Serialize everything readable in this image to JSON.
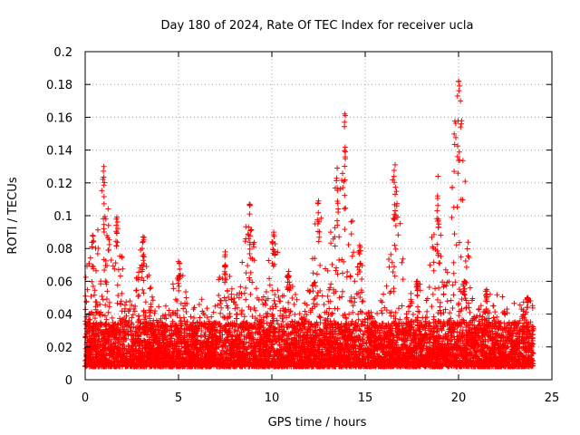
{
  "chart_data": {
    "type": "scatter",
    "title": "Day 180 of 2024, Rate Of TEC Index for receiver ucla",
    "xlabel": "GPS time / hours",
    "ylabel": "ROTI / TECUs",
    "xlim": [
      0,
      25
    ],
    "ylim": [
      0,
      0.2
    ],
    "x_ticks": [
      0,
      5,
      10,
      15,
      20,
      25
    ],
    "x_tick_labels": [
      "0",
      "5",
      "10",
      "15",
      "20",
      "25"
    ],
    "y_ticks": [
      0,
      0.02,
      0.04,
      0.06,
      0.08,
      0.1,
      0.12,
      0.14,
      0.16,
      0.18,
      0.2
    ],
    "y_tick_labels": [
      "0",
      "0.02",
      "0.04",
      "0.06",
      "0.08",
      "0.1",
      "0.12",
      "0.14",
      "0.16",
      "0.18",
      "0.2"
    ],
    "grid": true,
    "marker": "plus",
    "marker_color": "#ff0000",
    "series": [
      {
        "name": "ROTI",
        "x_range": [
          0,
          24
        ],
        "typical_min": 0.008,
        "typical_max": 0.035,
        "peaks": [
          {
            "x": 1.0,
            "y": 0.13
          },
          {
            "x": 0.4,
            "y": 0.088
          },
          {
            "x": 1.7,
            "y": 0.099
          },
          {
            "x": 3.1,
            "y": 0.087
          },
          {
            "x": 5.0,
            "y": 0.072
          },
          {
            "x": 7.5,
            "y": 0.078
          },
          {
            "x": 8.8,
            "y": 0.107
          },
          {
            "x": 10.1,
            "y": 0.09
          },
          {
            "x": 10.9,
            "y": 0.066
          },
          {
            "x": 12.5,
            "y": 0.109
          },
          {
            "x": 13.5,
            "y": 0.129
          },
          {
            "x": 13.9,
            "y": 0.162
          },
          {
            "x": 14.7,
            "y": 0.082
          },
          {
            "x": 16.6,
            "y": 0.131
          },
          {
            "x": 17.8,
            "y": 0.06
          },
          {
            "x": 18.9,
            "y": 0.124
          },
          {
            "x": 20.0,
            "y": 0.182
          },
          {
            "x": 20.3,
            "y": 0.06
          },
          {
            "x": 21.5,
            "y": 0.055
          },
          {
            "x": 23.7,
            "y": 0.05
          }
        ]
      }
    ]
  }
}
